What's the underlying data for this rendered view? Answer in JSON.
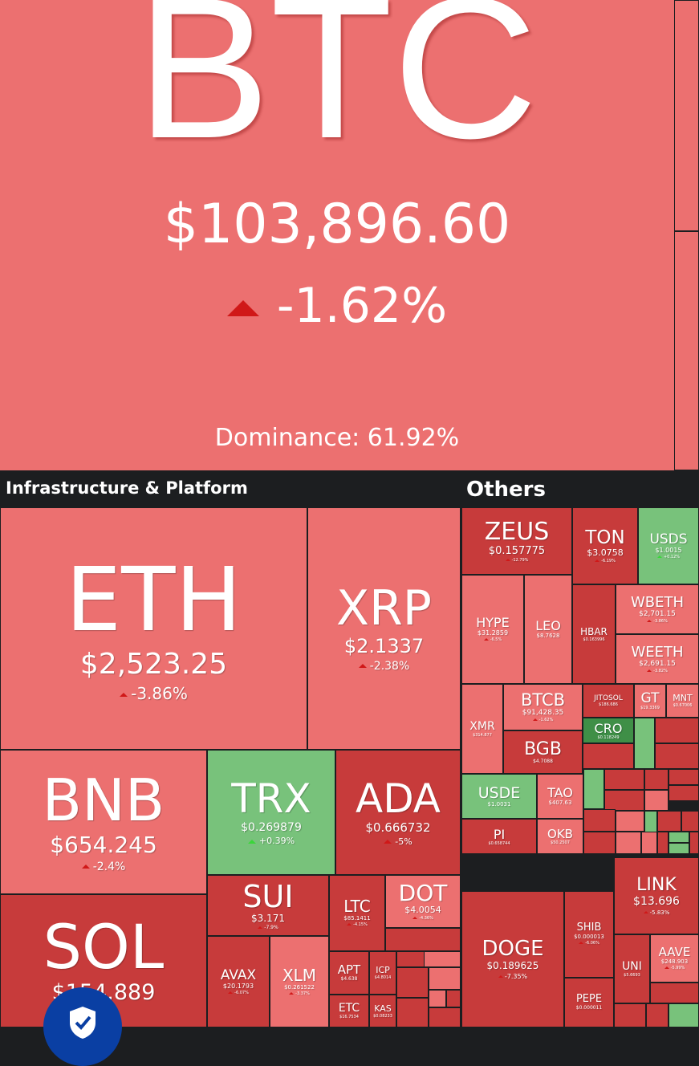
{
  "colors": {
    "background": "#1c1e20",
    "red_light": "#ec7070",
    "red_mid": "#e15a5a",
    "red_dark": "#c73b3b",
    "green_light": "#78c27b",
    "green_dark": "#3f8f47"
  },
  "btc": {
    "symbol": "BTC",
    "price": "$103,896.60",
    "change": "-1.62%",
    "dominance": "Dominance: 61.92%"
  },
  "sections": {
    "infra": "Infrastructure & Platform",
    "others": "Others"
  },
  "chart_data": {
    "type": "treemap",
    "tiles": [
      {
        "symbol": "BTC",
        "price": "$103,896.60",
        "change": "-1.62%",
        "direction": "down"
      },
      {
        "symbol": "ETH",
        "price": "$2,523.25",
        "change": "-3.86%",
        "direction": "down"
      },
      {
        "symbol": "XRP",
        "price": "$2.1337",
        "change": "-2.38%",
        "direction": "down"
      },
      {
        "symbol": "BNB",
        "price": "$654.245",
        "change": "-2.4%",
        "direction": "down"
      },
      {
        "symbol": "TRX",
        "price": "$0.269879",
        "change": "+0.39%",
        "direction": "up"
      },
      {
        "symbol": "ADA",
        "price": "$0.666732",
        "change": "-5%",
        "direction": "down"
      },
      {
        "symbol": "SOL",
        "price": "$154.889",
        "change": "",
        "direction": "down"
      },
      {
        "symbol": "SUI",
        "price": "$3.171",
        "change": "-7.9%",
        "direction": "down"
      },
      {
        "symbol": "LTC",
        "price": "$85.1411",
        "change": "-4.15%",
        "direction": "down"
      },
      {
        "symbol": "DOT",
        "price": "$4.0054",
        "change": "-4.36%",
        "direction": "down"
      },
      {
        "symbol": "AVAX",
        "price": "$20.1793",
        "change": "-6.07%",
        "direction": "down"
      },
      {
        "symbol": "XLM",
        "price": "$0.261522",
        "change": "-3.37%",
        "direction": "down"
      },
      {
        "symbol": "APT",
        "price": "$4.638",
        "change": "",
        "direction": "down"
      },
      {
        "symbol": "ICP",
        "price": "$4.8014",
        "change": "",
        "direction": "down"
      },
      {
        "symbol": "ETC",
        "price": "$16.7534",
        "change": "",
        "direction": "down"
      },
      {
        "symbol": "KAS",
        "price": "$0.08233",
        "change": "",
        "direction": "down"
      },
      {
        "symbol": "ZEUS",
        "price": "$0.157775",
        "change": "-12.79%",
        "direction": "down"
      },
      {
        "symbol": "TON",
        "price": "$3.0758",
        "change": "-6.19%",
        "direction": "down"
      },
      {
        "symbol": "USDS",
        "price": "$1.0015",
        "change": "+0.12%",
        "direction": "up"
      },
      {
        "symbol": "HYPE",
        "price": "$31.2859",
        "change": "-6.5%",
        "direction": "down"
      },
      {
        "symbol": "LEO",
        "price": "$8.7628",
        "change": "",
        "direction": "down"
      },
      {
        "symbol": "HBAR",
        "price": "$0.163996",
        "change": "",
        "direction": "down"
      },
      {
        "symbol": "WBETH",
        "price": "$2,701.15",
        "change": "-3.86%",
        "direction": "down"
      },
      {
        "symbol": "WEETH",
        "price": "$2,691.15",
        "change": "-3.82%",
        "direction": "down"
      },
      {
        "symbol": "XMR",
        "price": "$314.877",
        "change": "",
        "direction": "down"
      },
      {
        "symbol": "BTCB",
        "price": "$91,428.35",
        "change": "-1.62%",
        "direction": "down"
      },
      {
        "symbol": "JITOSOL",
        "price": "$186.686",
        "change": "",
        "direction": "down"
      },
      {
        "symbol": "GT",
        "price": "$19.3369",
        "change": "",
        "direction": "down"
      },
      {
        "symbol": "MNT",
        "price": "$0.67006",
        "change": "",
        "direction": "down"
      },
      {
        "symbol": "CRO",
        "price": "$0.118249",
        "change": "",
        "direction": "up"
      },
      {
        "symbol": "BGB",
        "price": "$4.7088",
        "change": "",
        "direction": "down"
      },
      {
        "symbol": "USDE",
        "price": "$1.0031",
        "change": "",
        "direction": "down"
      },
      {
        "symbol": "TAO",
        "price": "$407.63",
        "change": "",
        "direction": "down"
      },
      {
        "symbol": "PI",
        "price": "$0.658744",
        "change": "",
        "direction": "down"
      },
      {
        "symbol": "OKB",
        "price": "$50.2507",
        "change": "",
        "direction": "down"
      },
      {
        "symbol": "DOGE",
        "price": "$0.189625",
        "change": "-7.35%",
        "direction": "down"
      },
      {
        "symbol": "SHIB",
        "price": "$0.000013",
        "change": "-6.06%",
        "direction": "down"
      },
      {
        "symbol": "PEPE",
        "price": "$0.000011",
        "change": "",
        "direction": "down"
      },
      {
        "symbol": "LINK",
        "price": "$13.696",
        "change": "-5.83%",
        "direction": "down"
      },
      {
        "symbol": "UNI",
        "price": "$5.6693",
        "change": "",
        "direction": "down"
      },
      {
        "symbol": "AAVE",
        "price": "$248.903",
        "change": "-5.99%",
        "direction": "down"
      }
    ]
  }
}
